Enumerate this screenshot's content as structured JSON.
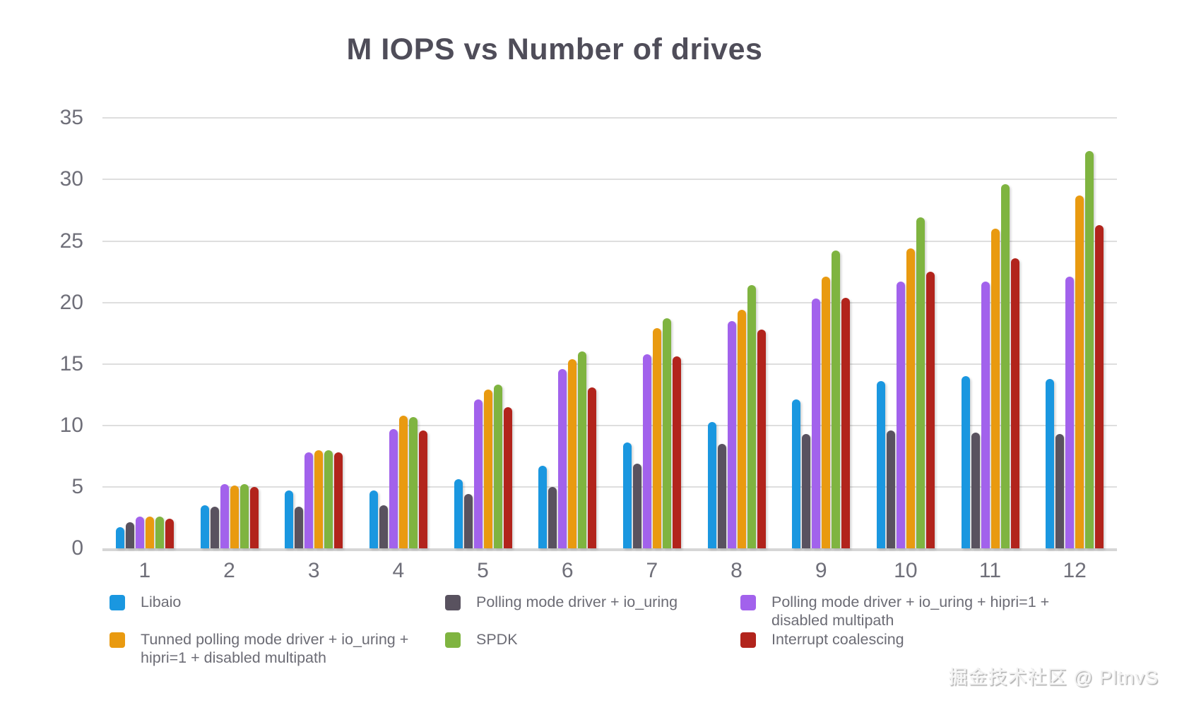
{
  "watermark": "掘金技术社区 @ PltnvS",
  "colors": {
    "background": "#ffffff",
    "title_text": "#4f4d59",
    "axis_text": "#6f6f79",
    "legend_text": "#6c6c75",
    "gridline": "#dedede",
    "axis_line": "#d6d6d6"
  },
  "chart_data": {
    "type": "bar",
    "title": "M IOPS vs Number of drives",
    "xlabel": "",
    "ylabel": "",
    "categories": [
      "1",
      "2",
      "3",
      "4",
      "5",
      "6",
      "7",
      "8",
      "9",
      "10",
      "11",
      "12"
    ],
    "ylim": [
      0,
      35
    ],
    "yticks": [
      0,
      5,
      10,
      15,
      20,
      25,
      30,
      35
    ],
    "grid": true,
    "legend_position": "bottom",
    "series": [
      {
        "name": "Libaio",
        "color": "#1a97e0",
        "values": [
          1.7,
          3.5,
          4.7,
          4.7,
          5.6,
          6.7,
          8.6,
          10.3,
          12.1,
          13.6,
          14.0,
          13.8
        ]
      },
      {
        "name": "Polling mode driver + io_uring",
        "color": "#59525f",
        "values": [
          2.1,
          3.4,
          3.4,
          3.5,
          4.4,
          5.0,
          6.9,
          8.5,
          9.3,
          9.6,
          9.4,
          9.3
        ]
      },
      {
        "name": "Polling mode driver + io_uring + hipri=1 + disabled multipath",
        "color": "#a262ec",
        "values": [
          2.6,
          5.2,
          7.8,
          9.7,
          12.1,
          14.6,
          15.8,
          18.5,
          20.3,
          21.7,
          21.7,
          22.1
        ]
      },
      {
        "name": "Tunned polling mode driver + io_uring + hipri=1 + disabled multipath",
        "color": "#e99a10",
        "values": [
          2.6,
          5.1,
          8.0,
          10.8,
          12.9,
          15.4,
          17.9,
          19.4,
          22.1,
          24.4,
          26.0,
          28.7
        ]
      },
      {
        "name": "SPDK",
        "color": "#7fb440",
        "values": [
          2.6,
          5.2,
          8.0,
          10.7,
          13.3,
          16.0,
          18.7,
          21.4,
          24.2,
          26.9,
          29.6,
          32.3
        ]
      },
      {
        "name": "Interrupt coalescing",
        "color": "#b2241c",
        "values": [
          2.4,
          5.0,
          7.8,
          9.6,
          11.5,
          13.1,
          15.6,
          17.8,
          20.4,
          22.5,
          23.6,
          26.3
        ]
      }
    ]
  }
}
